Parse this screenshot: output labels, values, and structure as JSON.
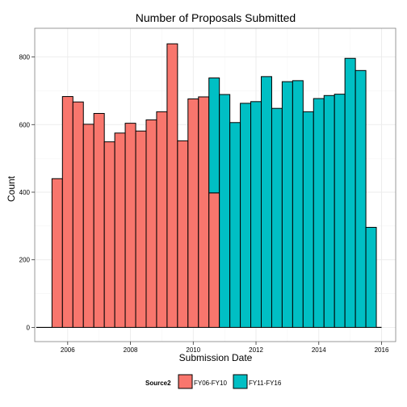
{
  "chart_data": {
    "type": "bar",
    "title": "Number of Proposals Submitted",
    "xlabel": "Submission Date",
    "ylabel": "Count",
    "xlim": [
      2004.95,
      2016.45
    ],
    "ylim": [
      -42,
      885
    ],
    "x_ticks": [
      2006,
      2008,
      2010,
      2012,
      2014,
      2016
    ],
    "y_ticks": [
      0,
      200,
      400,
      600,
      800
    ],
    "bin_width": 0.5,
    "grid": true,
    "legend": {
      "title": "Source2",
      "position": "bottom"
    },
    "series": [
      {
        "name": "FY06-FY10",
        "color": "#F8766D",
        "bins": [
          {
            "x0": 2005.0,
            "x1": 2005.5,
            "value": 0
          },
          {
            "x0": 2005.5,
            "x1": 2005.833,
            "value": 440
          },
          {
            "x0": 2005.833,
            "x1": 2006.167,
            "value": 683
          },
          {
            "x0": 2006.167,
            "x1": 2006.5,
            "value": 667
          },
          {
            "x0": 2006.5,
            "x1": 2006.833,
            "value": 601
          },
          {
            "x0": 2006.833,
            "x1": 2007.167,
            "value": 633
          },
          {
            "x0": 2007.167,
            "x1": 2007.5,
            "value": 549
          },
          {
            "x0": 2007.5,
            "x1": 2007.833,
            "value": 575
          },
          {
            "x0": 2007.833,
            "x1": 2008.167,
            "value": 604
          },
          {
            "x0": 2008.167,
            "x1": 2008.5,
            "value": 581
          },
          {
            "x0": 2008.5,
            "x1": 2008.833,
            "value": 614
          },
          {
            "x0": 2008.833,
            "x1": 2009.167,
            "value": 638
          },
          {
            "x0": 2009.167,
            "x1": 2009.5,
            "value": 839
          },
          {
            "x0": 2009.5,
            "x1": 2009.833,
            "value": 552
          },
          {
            "x0": 2009.833,
            "x1": 2010.167,
            "value": 676
          },
          {
            "x0": 2010.167,
            "x1": 2010.5,
            "value": 682
          },
          {
            "x0": 2010.5,
            "x1": 2010.833,
            "value": 398
          }
        ]
      },
      {
        "name": "FY11-FY16",
        "color": "#00BFC4",
        "bins": [
          {
            "x0": 2010.5,
            "x1": 2010.833,
            "value": 738,
            "base": 398
          },
          {
            "x0": 2010.833,
            "x1": 2011.167,
            "value": 689
          },
          {
            "x0": 2011.167,
            "x1": 2011.5,
            "value": 606
          },
          {
            "x0": 2011.5,
            "x1": 2011.833,
            "value": 663
          },
          {
            "x0": 2011.833,
            "x1": 2012.167,
            "value": 668
          },
          {
            "x0": 2012.167,
            "x1": 2012.5,
            "value": 742
          },
          {
            "x0": 2012.5,
            "x1": 2012.833,
            "value": 648
          },
          {
            "x0": 2012.833,
            "x1": 2013.167,
            "value": 727
          },
          {
            "x0": 2013.167,
            "x1": 2013.5,
            "value": 730
          },
          {
            "x0": 2013.5,
            "x1": 2013.833,
            "value": 638
          },
          {
            "x0": 2013.833,
            "x1": 2014.167,
            "value": 677
          },
          {
            "x0": 2014.167,
            "x1": 2014.5,
            "value": 686
          },
          {
            "x0": 2014.5,
            "x1": 2014.833,
            "value": 690
          },
          {
            "x0": 2014.833,
            "x1": 2015.167,
            "value": 796
          },
          {
            "x0": 2015.167,
            "x1": 2015.5,
            "value": 760
          },
          {
            "x0": 2015.5,
            "x1": 2015.833,
            "value": 296
          },
          {
            "x0": 2015.833,
            "x1": 2016.0,
            "value": 0
          }
        ]
      }
    ]
  }
}
